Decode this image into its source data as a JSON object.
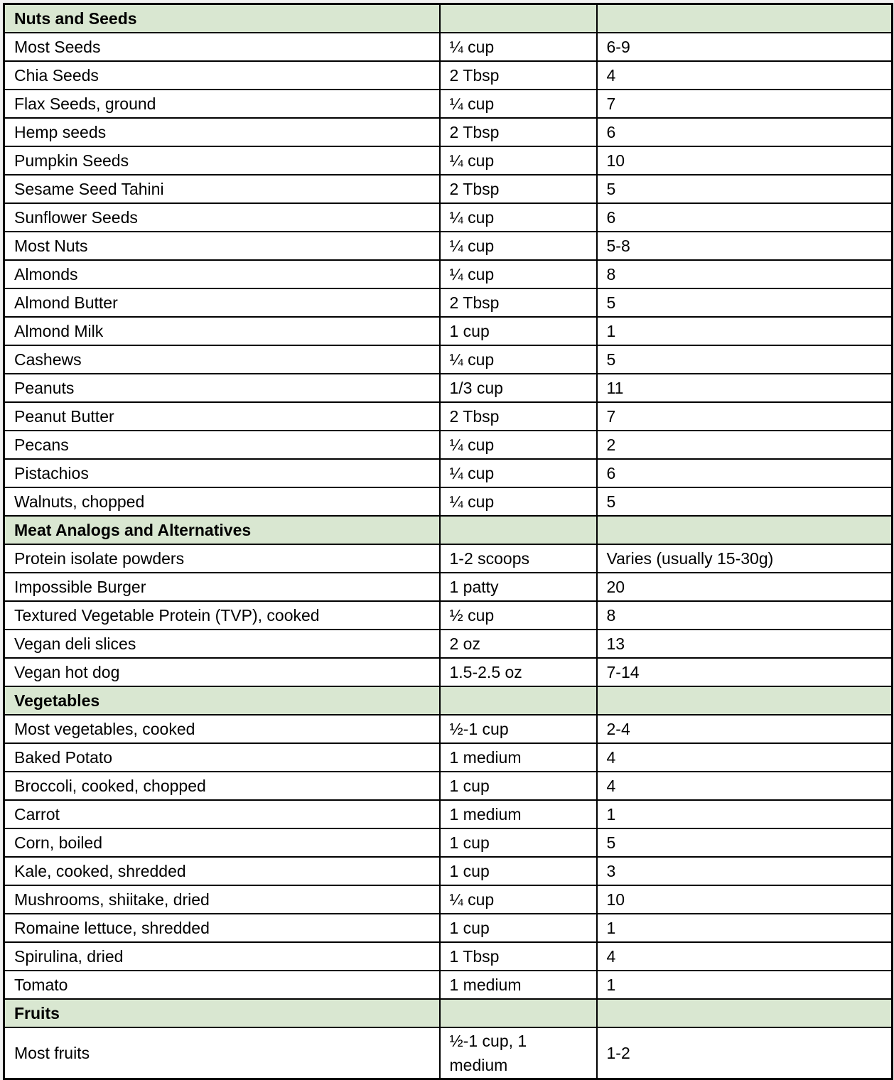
{
  "table": {
    "sections": [
      {
        "title": "Nuts and Seeds",
        "rows": [
          {
            "food": "Most Seeds",
            "serving": "¼ cup",
            "protein": "6-9"
          },
          {
            "food": "Chia Seeds",
            "serving": "2 Tbsp",
            "protein": "4"
          },
          {
            "food": "Flax Seeds, ground",
            "serving": "¼ cup",
            "protein": "7"
          },
          {
            "food": "Hemp seeds",
            "serving": "2 Tbsp",
            "protein": "6"
          },
          {
            "food": "Pumpkin Seeds",
            "serving": "¼ cup",
            "protein": "10"
          },
          {
            "food": "Sesame Seed Tahini",
            "serving": "2 Tbsp",
            "protein": "5"
          },
          {
            "food": "Sunflower Seeds",
            "serving": "¼ cup",
            "protein": "6"
          },
          {
            "food": "Most Nuts",
            "serving": "¼ cup",
            "protein": "5-8"
          },
          {
            "food": "Almonds",
            "serving": "¼ cup",
            "protein": "8"
          },
          {
            "food": "Almond Butter",
            "serving": "2 Tbsp",
            "protein": "5"
          },
          {
            "food": "Almond Milk",
            "serving": "1 cup",
            "protein": "1"
          },
          {
            "food": "Cashews",
            "serving": "¼ cup",
            "protein": "5"
          },
          {
            "food": "Peanuts",
            "serving": "1/3 cup",
            "protein": "11"
          },
          {
            "food": "Peanut Butter",
            "serving": "2 Tbsp",
            "protein": "7"
          },
          {
            "food": "Pecans",
            "serving": "¼ cup",
            "protein": "2"
          },
          {
            "food": "Pistachios",
            "serving": "¼ cup",
            "protein": "6"
          },
          {
            "food": "Walnuts, chopped",
            "serving": "¼ cup",
            "protein": "5"
          }
        ]
      },
      {
        "title": "Meat Analogs and Alternatives",
        "rows": [
          {
            "food": "Protein isolate powders",
            "serving": "1-2 scoops",
            "protein": "Varies (usually 15-30g)"
          },
          {
            "food": "Impossible Burger",
            "serving": "1 patty",
            "protein": "20"
          },
          {
            "food": "Textured Vegetable Protein (TVP), cooked",
            "serving": "½ cup",
            "protein": "8"
          },
          {
            "food": "Vegan deli slices",
            "serving": "2 oz",
            "protein": "13"
          },
          {
            "food": "Vegan hot dog",
            "serving": "1.5-2.5 oz",
            "protein": "7-14"
          }
        ]
      },
      {
        "title": "Vegetables",
        "rows": [
          {
            "food": "Most vegetables, cooked",
            "serving": "½-1 cup",
            "protein": "2-4"
          },
          {
            "food": "Baked Potato",
            "serving": "1 medium",
            "protein": "4"
          },
          {
            "food": "Broccoli, cooked, chopped",
            "serving": "1 cup",
            "protein": "4"
          },
          {
            "food": "Carrot",
            "serving": "1 medium",
            "protein": "1"
          },
          {
            "food": "Corn, boiled",
            "serving": "1 cup",
            "protein": "5"
          },
          {
            "food": "Kale, cooked, shredded",
            "serving": "1 cup",
            "protein": "3"
          },
          {
            "food": "Mushrooms, shiitake, dried",
            "serving": "¼ cup",
            "protein": "10"
          },
          {
            "food": "Romaine lettuce, shredded",
            "serving": "1 cup",
            "protein": "1"
          },
          {
            "food": "Spirulina, dried",
            "serving": "1 Tbsp",
            "protein": "4"
          },
          {
            "food": "Tomato",
            "serving": "1 medium",
            "protein": "1"
          }
        ]
      },
      {
        "title": "Fruits",
        "rows": [
          {
            "food": "Most fruits",
            "serving": "½-1 cup, 1 medium",
            "protein": "1-2"
          }
        ]
      }
    ],
    "colors": {
      "section_header_bg": "#d9e7d1",
      "grid_border": "#000000",
      "page_background": "#f1f1f1"
    }
  }
}
